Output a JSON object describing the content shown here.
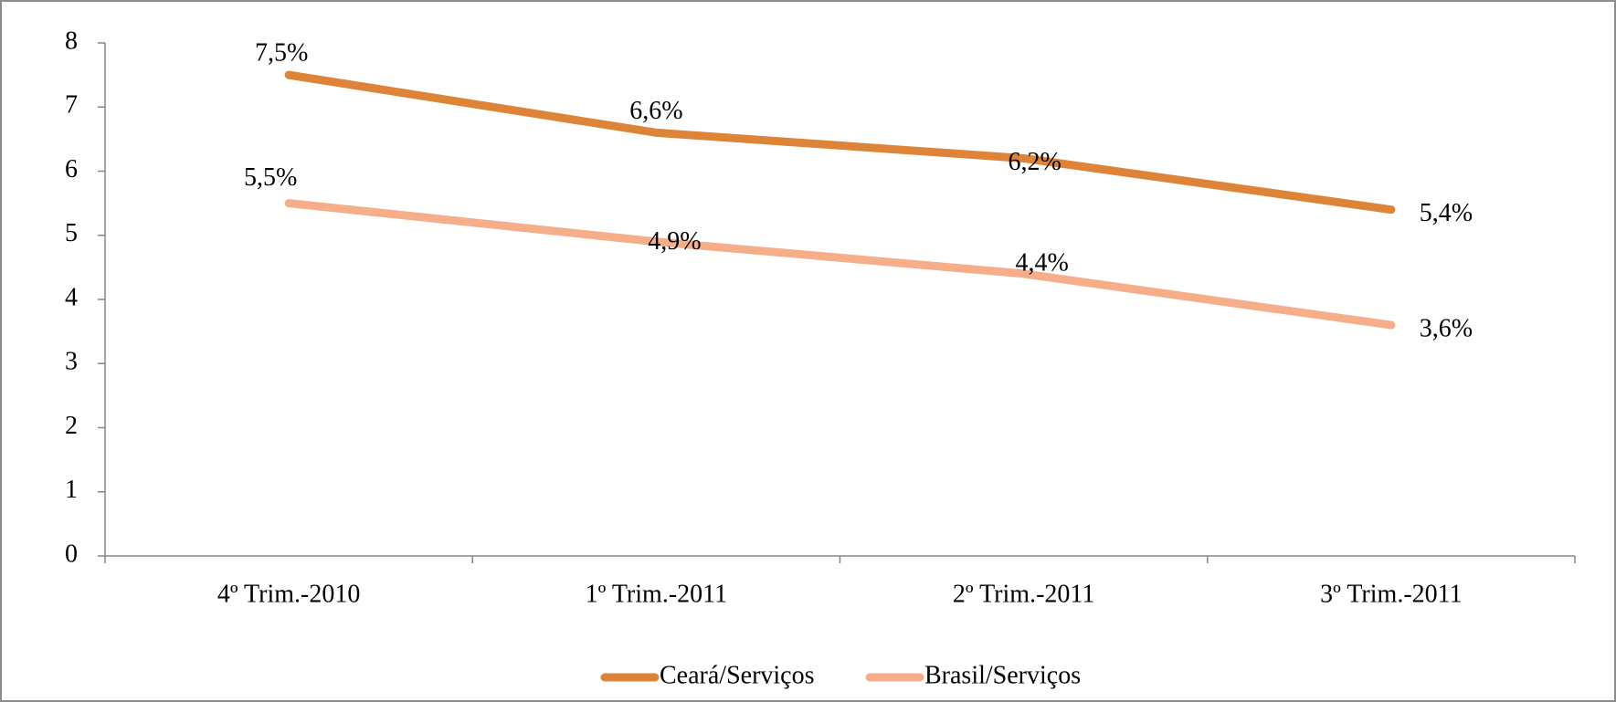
{
  "chart_data": {
    "type": "line",
    "categories": [
      "4º Trim.-2010",
      "1º Trim.-2011",
      "2º Trim.-2011",
      "3º Trim.-2011"
    ],
    "series": [
      {
        "name": "Ceará/Serviços",
        "color": "#dd8439",
        "values": [
          7.5,
          6.6,
          6.2,
          5.4
        ],
        "value_labels": [
          "7,5%",
          "6,6%",
          "6,2%",
          "5,4%"
        ]
      },
      {
        "name": "Brasil/Serviços",
        "color": "#f6ae8a",
        "values": [
          5.5,
          4.9,
          4.4,
          3.6
        ],
        "value_labels": [
          "5,5%",
          "4,9%",
          "4,4%",
          "3,6%"
        ]
      }
    ],
    "ylim": [
      0,
      8
    ],
    "yticks": [
      0,
      1,
      2,
      3,
      4,
      5,
      6,
      7,
      8
    ],
    "legend": "bottom"
  }
}
